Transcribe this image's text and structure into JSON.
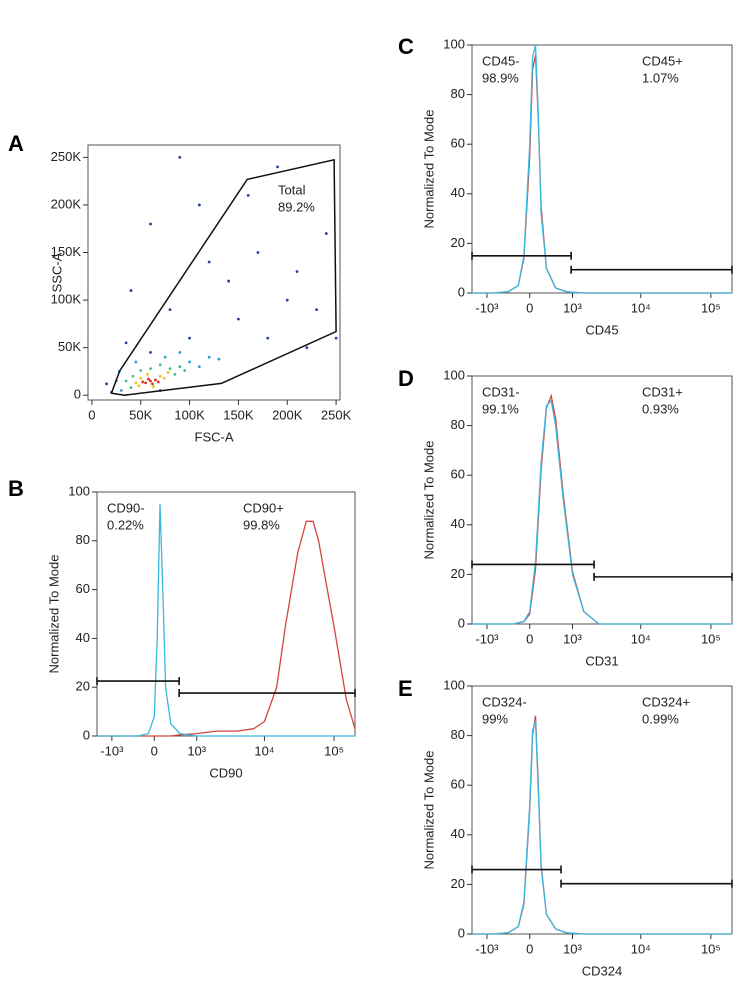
{
  "chart_data": [
    {
      "type": "scatter",
      "panel": "A",
      "x_label": "FSC-A",
      "y_label": "SSC-A",
      "xlim": [
        -4000,
        254000
      ],
      "ylim": [
        -5000,
        263000
      ],
      "xticks": [
        0,
        {
          "value": 50000,
          "label": "50K"
        },
        {
          "value": 100000,
          "label": "100K"
        },
        {
          "value": 150000,
          "label": "150K"
        },
        {
          "value": 200000,
          "label": "200K"
        },
        {
          "value": 250000,
          "label": "250K"
        }
      ],
      "yticks": [
        0,
        {
          "value": 50000,
          "label": "50K"
        },
        {
          "value": 100000,
          "label": "100K"
        },
        {
          "value": 150000,
          "label": "150K"
        },
        {
          "value": 200000,
          "label": "200K"
        },
        {
          "value": 250000,
          "label": "250K"
        }
      ],
      "series": [
        {
          "color": "#2040a0",
          "x": [
            20000,
            15000,
            35000,
            60000,
            100000,
            150000,
            180000,
            200000,
            230000,
            140000,
            170000,
            80000,
            110000,
            60000,
            210000,
            240000,
            190000,
            160000,
            120000,
            250000,
            90000,
            40000,
            70000,
            220000
          ],
          "y": [
            3000,
            12000,
            55000,
            45000,
            60000,
            80000,
            60000,
            100000,
            90000,
            120000,
            150000,
            90000,
            200000,
            180000,
            130000,
            170000,
            240000,
            210000,
            140000,
            60000,
            250000,
            110000,
            5000,
            50000
          ]
        },
        {
          "color": "#30a0d0",
          "x": [
            30000,
            25000,
            100000,
            110000,
            120000,
            45000,
            75000,
            28000,
            90000,
            130000
          ],
          "y": [
            5000,
            15000,
            35000,
            30000,
            40000,
            35000,
            40000,
            25000,
            45000,
            38000
          ]
        },
        {
          "color": "#40c080",
          "x": [
            40000,
            42000,
            80000,
            85000,
            90000,
            60000,
            70000,
            35000,
            95000,
            50000
          ],
          "y": [
            8000,
            20000,
            28000,
            22000,
            30000,
            28000,
            32000,
            15000,
            26000,
            26000
          ]
        },
        {
          "color": "#f0c020",
          "x": [
            48000,
            50000,
            70000,
            74000,
            57000,
            63000,
            45000,
            78000
          ],
          "y": [
            10000,
            18000,
            20000,
            18000,
            22000,
            9000,
            13000,
            24000
          ]
        },
        {
          "color": "#e03020",
          "x": [
            55000,
            60000,
            62000,
            58000,
            65000,
            52000,
            68000
          ],
          "y": [
            13000,
            15000,
            12000,
            17000,
            16000,
            14000,
            14000
          ]
        }
      ],
      "gate": {
        "name": "Total",
        "percent": "89.2%",
        "x": [
          20000,
          28600,
          159000,
          248000,
          250000,
          132600,
          33700,
          20000
        ],
        "y": [
          2000,
          25800,
          226800,
          247400,
          67000,
          12400,
          0,
          2000
        ]
      }
    },
    {
      "type": "line",
      "panel": "B",
      "x_label": "CD90",
      "y_label": "Normalized To Mode",
      "xscale": "biexponential",
      "xlim": [
        -1700,
        200000
      ],
      "ylim": [
        0,
        100
      ],
      "xticks": [
        {
          "value": -1000,
          "label": "-10³"
        },
        0,
        {
          "value": 1000,
          "label": "10³"
        },
        {
          "value": 10000,
          "label": "10⁴"
        },
        {
          "value": 100000,
          "label": "10⁵"
        }
      ],
      "yticks": [
        0,
        20,
        40,
        60,
        80,
        100
      ],
      "x": [
        -1700,
        -300,
        -100,
        0,
        50,
        100,
        150,
        200,
        300,
        500,
        1000,
        2000,
        4000,
        7000,
        10000,
        15000,
        20000,
        30000,
        40000,
        50000,
        60000,
        80000,
        100000,
        150000,
        200000
      ],
      "series": [
        {
          "color": "#d0463c",
          "values": [
            0,
            0,
            0,
            0,
            0,
            0,
            0,
            0,
            0,
            0.5,
            1,
            2,
            2,
            3,
            6,
            20,
            45,
            75,
            88,
            88,
            80,
            60,
            45,
            15,
            3
          ]
        },
        {
          "color": "#3ab8e0",
          "values": [
            0,
            0,
            1,
            8,
            40,
            95,
            60,
            20,
            5,
            1,
            0,
            0,
            0,
            0,
            0,
            0,
            0,
            0,
            0,
            0,
            0,
            0,
            0,
            0,
            0
          ]
        }
      ],
      "gates": [
        {
          "name": "CD90-",
          "percent": "0.22%",
          "x": [
            -1700,
            480
          ],
          "y": 22.5
        },
        {
          "name": "CD90+",
          "percent": "99.8%",
          "x": [
            480,
            200000
          ],
          "y": 17.6
        }
      ]
    },
    {
      "type": "line",
      "panel": "C",
      "x_label": "CD45",
      "y_label": "Normalized To Mode",
      "xscale": "biexponential",
      "xlim": [
        -1700,
        200000
      ],
      "ylim": [
        0,
        100
      ],
      "xticks": [
        {
          "value": -1000,
          "label": "-10³"
        },
        0,
        {
          "value": 1000,
          "label": "10³"
        },
        {
          "value": 10000,
          "label": "10⁴"
        },
        {
          "value": 100000,
          "label": "10⁵"
        }
      ],
      "yticks": [
        0,
        20,
        40,
        60,
        80,
        100
      ],
      "x": [
        -1700,
        -800,
        -400,
        -200,
        -100,
        0,
        50,
        100,
        150,
        200,
        300,
        500,
        800,
        1500,
        5000,
        200000
      ],
      "series": [
        {
          "color": "#d0463c",
          "values": [
            0,
            0,
            0.5,
            3,
            14,
            55,
            90,
            96,
            70,
            35,
            10,
            2,
            0.5,
            0,
            0,
            0
          ]
        },
        {
          "color": "#3ab8e0",
          "values": [
            0,
            0,
            0.5,
            3,
            15,
            60,
            95,
            100,
            72,
            32,
            10,
            2,
            0.5,
            0,
            0,
            0
          ]
        }
      ],
      "gates": [
        {
          "name": "CD45-",
          "percent": "98.9%",
          "x": [
            -1700,
            950
          ],
          "y": 15
        },
        {
          "name": "CD45+",
          "percent": "1.07%",
          "x": [
            950,
            200000
          ],
          "y": 9.4
        }
      ]
    },
    {
      "type": "line",
      "panel": "D",
      "x_label": "CD31",
      "y_label": "Normalized To Mode",
      "xscale": "biexponential",
      "xlim": [
        -1700,
        200000
      ],
      "ylim": [
        0,
        100
      ],
      "xticks": [
        {
          "value": -1000,
          "label": "-10³"
        },
        0,
        {
          "value": 1000,
          "label": "10³"
        },
        {
          "value": 10000,
          "label": "10⁴"
        },
        {
          "value": 100000,
          "label": "10⁵"
        }
      ],
      "yticks": [
        0,
        20,
        40,
        60,
        80,
        100
      ],
      "x": [
        -1700,
        -300,
        -100,
        0,
        100,
        200,
        300,
        400,
        500,
        700,
        1000,
        1500,
        2500,
        200000
      ],
      "series": [
        {
          "color": "#d0463c",
          "values": [
            0,
            0,
            1,
            4,
            22,
            62,
            87,
            92,
            83,
            52,
            21,
            5,
            0,
            0
          ]
        },
        {
          "color": "#3ab8e0",
          "values": [
            0,
            0,
            1,
            5,
            25,
            65,
            88,
            90,
            80,
            50,
            20,
            5,
            0,
            0
          ]
        }
      ],
      "gates": [
        {
          "name": "CD31-",
          "percent": "99.1%",
          "x": [
            -1700,
            2130
          ],
          "y": 24
        },
        {
          "name": "CD31+",
          "percent": "0.93%",
          "x": [
            2130,
            200000
          ],
          "y": 19
        }
      ]
    },
    {
      "type": "line",
      "panel": "E",
      "x_label": "CD324",
      "y_label": "Normalized To Mode",
      "xscale": "biexponential",
      "xlim": [
        -1700,
        200000
      ],
      "ylim": [
        0,
        100
      ],
      "xticks": [
        {
          "value": -1000,
          "label": "-10³"
        },
        0,
        {
          "value": 1000,
          "label": "10³"
        },
        {
          "value": 10000,
          "label": "10⁴"
        },
        {
          "value": 100000,
          "label": "10⁵"
        }
      ],
      "yticks": [
        0,
        20,
        40,
        60,
        80,
        100
      ],
      "x": [
        -1700,
        -800,
        -400,
        -200,
        -100,
        0,
        50,
        100,
        150,
        200,
        300,
        500,
        800,
        1500,
        5000,
        200000
      ],
      "series": [
        {
          "color": "#d0463c",
          "values": [
            0,
            0,
            0.5,
            3,
            12,
            50,
            80,
            88,
            60,
            28,
            8,
            2,
            0.5,
            0,
            0,
            0
          ]
        },
        {
          "color": "#3ab8e0",
          "values": [
            0,
            0,
            0.5,
            3,
            13,
            52,
            82,
            86,
            58,
            27,
            8,
            2,
            0.5,
            0,
            0,
            0
          ]
        }
      ],
      "gates": [
        {
          "name": "CD324-",
          "percent": "99%",
          "x": [
            -1700,
            638
          ],
          "y": 26
        },
        {
          "name": "CD324+",
          "percent": "0.99%",
          "x": [
            638,
            200000
          ],
          "y": 20.3
        }
      ]
    }
  ]
}
